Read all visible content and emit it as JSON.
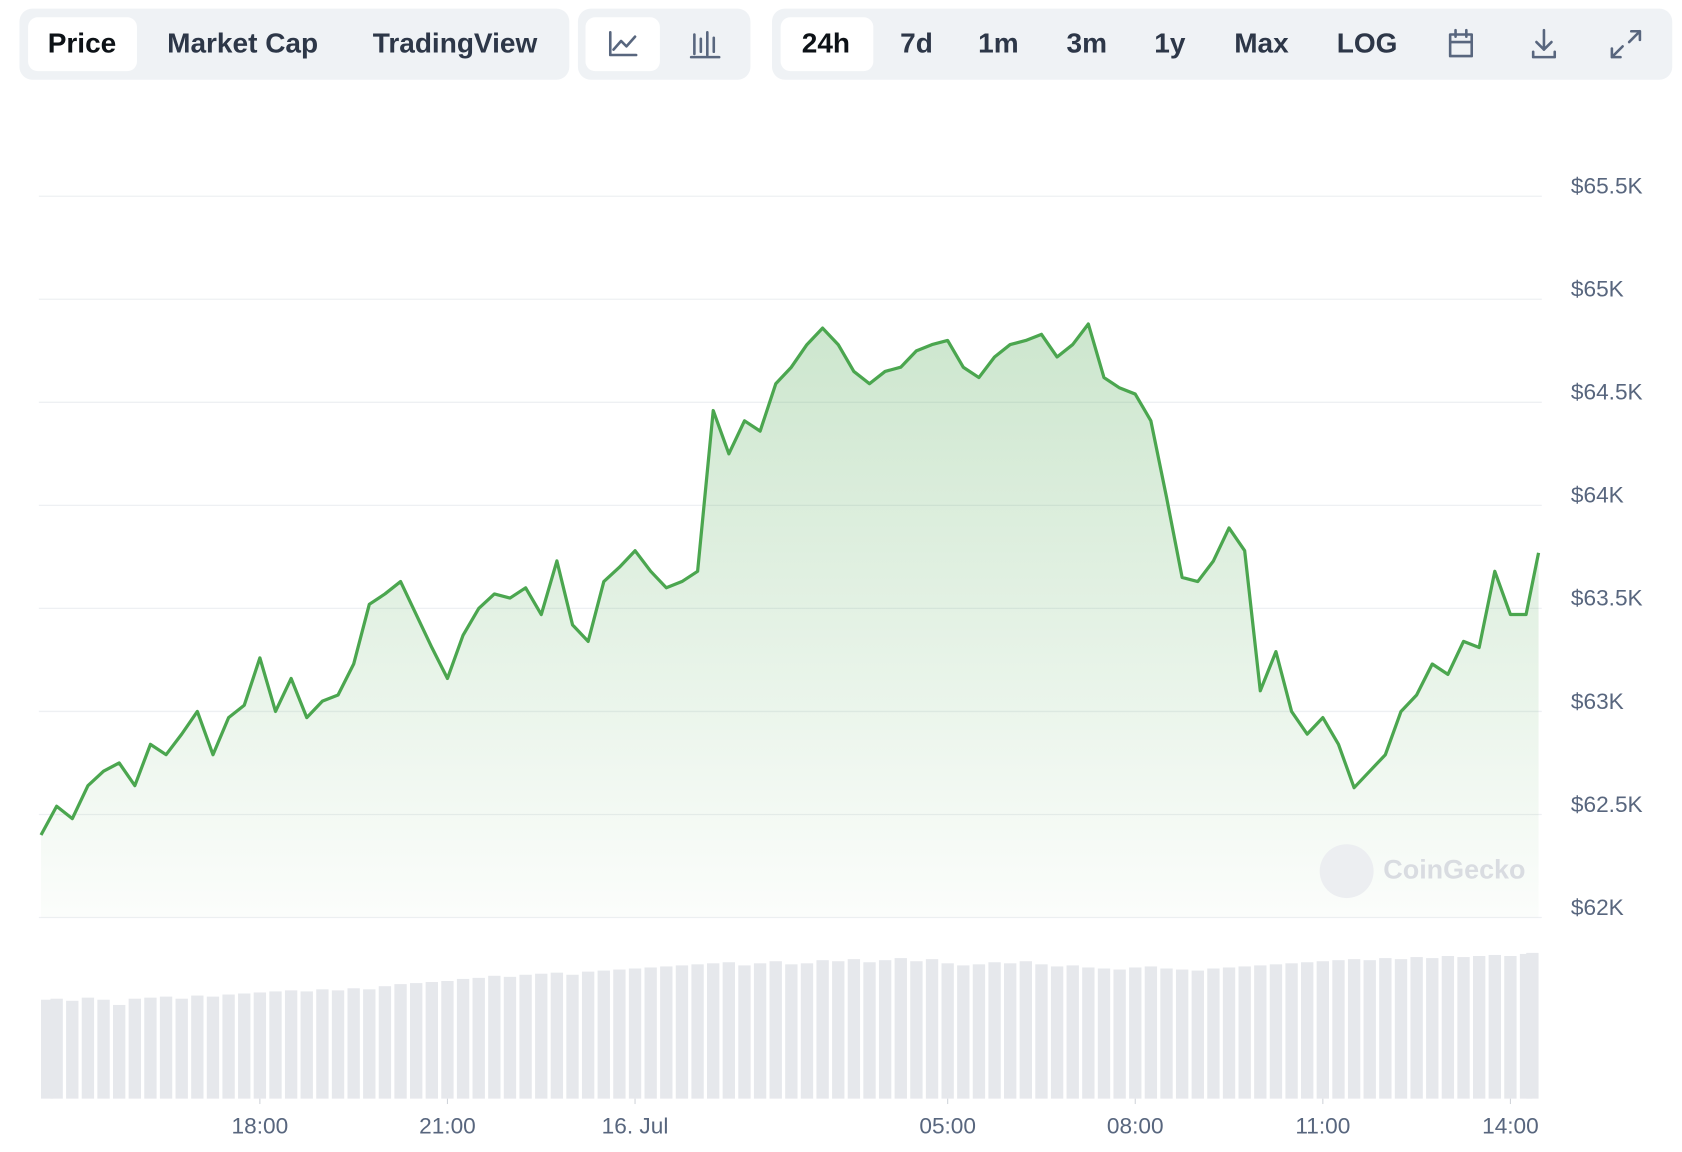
{
  "toolbar": {
    "views": [
      "Price",
      "Market Cap",
      "TradingView"
    ],
    "ranges": [
      "24h",
      "7d",
      "1m",
      "3m",
      "1y",
      "Max",
      "LOG"
    ]
  },
  "watermark": "CoinGecko",
  "chart_data": [
    {
      "type": "line",
      "x": [
        -9.5,
        -9.25,
        -9,
        -8.75,
        -8.5,
        -8.25,
        -8,
        -7.75,
        -7.5,
        -7.25,
        -7,
        -6.75,
        -6.5,
        -6.25,
        -6,
        -5.75,
        -5.5,
        -5.25,
        -5,
        -4.75,
        -4.5,
        -4.25,
        -4,
        -3.75,
        -3.5,
        -3.25,
        -3,
        -2.75,
        -2.5,
        -2.25,
        -2,
        -1.75,
        -1.5,
        -1.25,
        -1,
        -0.75,
        -0.5,
        -0.25,
        0,
        0.25,
        0.5,
        0.75,
        1,
        1.25,
        1.5,
        1.75,
        2,
        2.25,
        2.5,
        2.75,
        3,
        3.25,
        3.5,
        3.75,
        4,
        4.25,
        4.5,
        4.75,
        5,
        5.25,
        5.5,
        5.75,
        6,
        6.25,
        6.5,
        6.75,
        7,
        7.25,
        7.5,
        7.75,
        8,
        8.25,
        8.5,
        8.75,
        9,
        9.25,
        9.5,
        9.75,
        10,
        10.25,
        10.5,
        10.75,
        11,
        11.25,
        11.5,
        11.75,
        12,
        12.25,
        12.5,
        12.75,
        13,
        13.25,
        13.5,
        13.75,
        14,
        14.25,
        14.45
      ],
      "series": [
        {
          "color": "#4ba64f",
          "values": [
            62400,
            62540,
            62480,
            62640,
            62710,
            62750,
            62640,
            62840,
            62790,
            62890,
            63000,
            62790,
            62970,
            63030,
            63260,
            63000,
            63160,
            62970,
            63050,
            63080,
            63230,
            63520,
            63570,
            63630,
            63470,
            63310,
            63160,
            63370,
            63500,
            63570,
            63550,
            63600,
            63470,
            63730,
            63420,
            63340,
            63630,
            63700,
            63780,
            63680,
            63600,
            63630,
            63680,
            64460,
            64250,
            64410,
            64360,
            64590,
            64670,
            64780,
            64860,
            64780,
            64650,
            64590,
            64650,
            64670,
            64750,
            64780,
            64800,
            64670,
            64620,
            64720,
            64780,
            64800,
            64830,
            64720,
            64780,
            64880,
            64620,
            64570,
            64540,
            64410,
            64040,
            63650,
            63630,
            63730,
            63890,
            63780,
            63100,
            63290,
            63000,
            62890,
            62970,
            62840,
            62630,
            62710,
            62790,
            63000,
            63080,
            63230,
            63180,
            63340,
            63310,
            63680,
            63470,
            63470,
            63770
          ]
        }
      ],
      "xlim": [
        -9.5,
        14.45
      ],
      "xticks": [
        {
          "value": -6,
          "label": "18:00"
        },
        {
          "value": -3,
          "label": "21:00"
        },
        {
          "value": 0,
          "label": "16. Jul"
        },
        {
          "value": 5,
          "label": "05:00"
        },
        {
          "value": 8,
          "label": "08:00"
        },
        {
          "value": 11,
          "label": "11:00"
        },
        {
          "value": 14,
          "label": "14:00"
        }
      ],
      "ylim": [
        62000,
        65500
      ],
      "yticks": [
        {
          "value": 62000,
          "label": "$62K"
        },
        {
          "value": 62500,
          "label": "$62.5K"
        },
        {
          "value": 63000,
          "label": "$63K"
        },
        {
          "value": 63500,
          "label": "$63.5K"
        },
        {
          "value": 64000,
          "label": "$64K"
        },
        {
          "value": 64500,
          "label": "$64.5K"
        },
        {
          "value": 65000,
          "label": "$65K"
        },
        {
          "value": 65500,
          "label": "$65.5K"
        }
      ],
      "grid": true
    },
    {
      "type": "bar",
      "x": [
        -9.5,
        -9.25,
        -9,
        -8.75,
        -8.5,
        -8.25,
        -8,
        -7.75,
        -7.5,
        -7.25,
        -7,
        -6.75,
        -6.5,
        -6.25,
        -6,
        -5.75,
        -5.5,
        -5.25,
        -5,
        -4.75,
        -4.5,
        -4.25,
        -4,
        -3.75,
        -3.5,
        -3.25,
        -3,
        -2.75,
        -2.5,
        -2.25,
        -2,
        -1.75,
        -1.5,
        -1.25,
        -1,
        -0.75,
        -0.5,
        -0.25,
        0,
        0.25,
        0.5,
        0.75,
        1,
        1.25,
        1.5,
        1.75,
        2,
        2.25,
        2.5,
        2.75,
        3,
        3.25,
        3.5,
        3.75,
        4,
        4.25,
        4.5,
        4.75,
        5,
        5.25,
        5.5,
        5.75,
        6,
        6.25,
        6.5,
        6.75,
        7,
        7.25,
        7.5,
        7.75,
        8,
        8.25,
        8.5,
        8.75,
        9,
        9.25,
        9.5,
        9.75,
        10,
        10.25,
        10.5,
        10.75,
        11,
        11.25,
        11.5,
        11.75,
        12,
        12.25,
        12.5,
        12.75,
        13,
        13.25,
        13.5,
        13.75,
        14,
        14.25,
        14.45
      ],
      "values": [
        95,
        96,
        94,
        97,
        95,
        90,
        96,
        97,
        98,
        96,
        99,
        98,
        100,
        101,
        102,
        103,
        104,
        103,
        105,
        104,
        106,
        105,
        108,
        110,
        111,
        112,
        113,
        115,
        116,
        118,
        117,
        119,
        120,
        121,
        119,
        122,
        123,
        124,
        125,
        126,
        127,
        128,
        129,
        130,
        131,
        128,
        130,
        132,
        129,
        130,
        133,
        132,
        134,
        131,
        133,
        135,
        132,
        134,
        130,
        128,
        129,
        131,
        130,
        132,
        129,
        127,
        128,
        126,
        125,
        124,
        126,
        127,
        125,
        124,
        123,
        125,
        126,
        127,
        128,
        129,
        130,
        131,
        132,
        133,
        134,
        133,
        135,
        134,
        136,
        135,
        137,
        136,
        137,
        138,
        137,
        139,
        140
      ],
      "color": "#e6e8ec",
      "xlim": [
        -9.5,
        14.45
      ],
      "ylim": [
        0,
        145
      ]
    }
  ]
}
